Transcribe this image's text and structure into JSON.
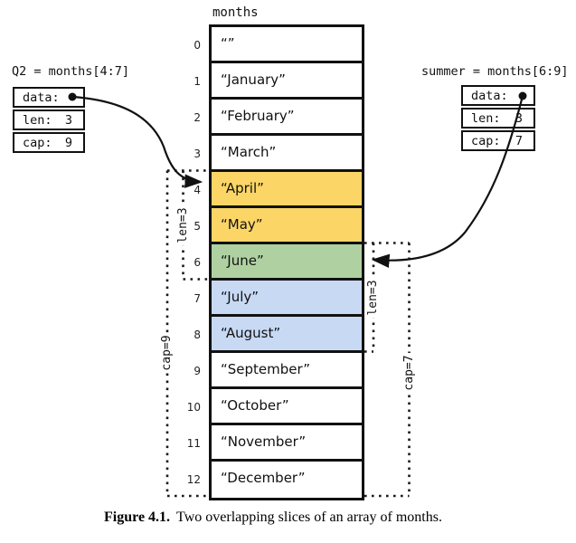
{
  "figure": {
    "array_title": "months",
    "cells": [
      {
        "index": "0",
        "value": "“”",
        "highlight": "none"
      },
      {
        "index": "1",
        "value": "“January”",
        "highlight": "none"
      },
      {
        "index": "2",
        "value": "“February”",
        "highlight": "none"
      },
      {
        "index": "3",
        "value": "“March”",
        "highlight": "none"
      },
      {
        "index": "4",
        "value": "“April”",
        "highlight": "q2"
      },
      {
        "index": "5",
        "value": "“May”",
        "highlight": "q2"
      },
      {
        "index": "6",
        "value": "“June”",
        "highlight": "overlap"
      },
      {
        "index": "7",
        "value": "“July”",
        "highlight": "summer"
      },
      {
        "index": "8",
        "value": "“August”",
        "highlight": "summer"
      },
      {
        "index": "9",
        "value": "“September”",
        "highlight": "none"
      },
      {
        "index": "10",
        "value": "“October”",
        "highlight": "none"
      },
      {
        "index": "11",
        "value": "“November”",
        "highlight": "none"
      },
      {
        "index": "12",
        "value": "“December”",
        "highlight": "none"
      }
    ],
    "q2": {
      "label": "Q2 = months[4:7]",
      "fields": [
        {
          "name": "data:",
          "value": ""
        },
        {
          "name": "len:",
          "value": "3"
        },
        {
          "name": "cap:",
          "value": "9"
        }
      ],
      "len_bracket": "len=3",
      "cap_bracket": "cap=9"
    },
    "summer": {
      "label": "summer = months[6:9]",
      "fields": [
        {
          "name": "data:",
          "value": ""
        },
        {
          "name": "len:",
          "value": "3"
        },
        {
          "name": "cap:",
          "value": "7"
        }
      ],
      "len_bracket": "len=3",
      "cap_bracket": "cap=7"
    },
    "caption": {
      "label": "Figure 4.1.",
      "text": "Two overlapping slices of an array of months."
    },
    "colors": {
      "q2": "#FBD566",
      "overlap": "#AFD1A1",
      "summer": "#C8D9F4",
      "line": "#111111"
    }
  }
}
